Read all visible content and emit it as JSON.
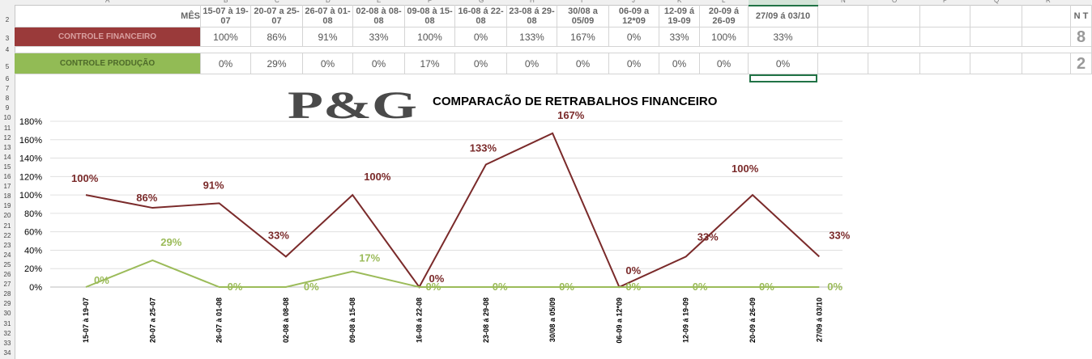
{
  "sheet": {
    "column_letters": [
      "A",
      "B",
      "C",
      "D",
      "E",
      "F",
      "G",
      "H",
      "I",
      "J",
      "K",
      "L",
      "M",
      "N",
      "O",
      "P",
      "Q",
      "R"
    ],
    "row_numbers": [
      "2",
      "3",
      "4",
      "5",
      "6",
      "7",
      "8",
      "9",
      "10",
      "11",
      "12",
      "13",
      "14",
      "15",
      "16",
      "17",
      "18",
      "19",
      "20",
      "21",
      "22",
      "23",
      "24",
      "25",
      "26",
      "27",
      "28",
      "29",
      "30",
      "31",
      "32",
      "33",
      "34"
    ],
    "header_label": "MÊS",
    "periods": [
      "15-07 à 19-07",
      "20-07 a 25-07",
      "26-07 à 01-08",
      "02-08 à 08-08",
      "09-08 à 15-08",
      "16-08 á 22-08",
      "23-08 á 29-08",
      "30/08 a 05/09",
      "06-09 a 12*09",
      "12-09 á 19-09",
      "20-09 á 26-09",
      "27/09 á 03/10"
    ],
    "row_fin_label": "CONTROLE FINANCEIRO",
    "row_fin_values": [
      "100%",
      "86%",
      "91%",
      "33%",
      "100%",
      "0%",
      "133%",
      "167%",
      "0%",
      "33%",
      "100%",
      "33%"
    ],
    "row_prod_label": "CONTROLE PRODUÇÃO",
    "row_prod_values": [
      "0%",
      "29%",
      "0%",
      "0%",
      "17%",
      "0%",
      "0%",
      "0%",
      "0%",
      "0%",
      "0%",
      "0%"
    ],
    "edge_header": "N T",
    "edge_fin": "8",
    "edge_prod": "2"
  },
  "logo_text": "P&G",
  "colors": {
    "financeiro": "#7a2a2a",
    "producao": "#9bbb59",
    "label_fin_bg": "#9a3a3a",
    "label_prod_bg": "#92bb55"
  },
  "chart_data": {
    "type": "line",
    "title": "COMPARACÃO DE RETRABALHOS  FINANCEIRO",
    "categories": [
      "15-07 à 19-07",
      "20-07 a 25-07",
      "26-07 à 01-08",
      "02-08 à 08-08",
      "09-08 à 15-08",
      "16-08 á 22-08",
      "23-08 á 29-08",
      "30/08 a 05/09",
      "06-09 a 12*09",
      "12-09 á 19-09",
      "20-09 á 26-09",
      "27/09 á 03/10"
    ],
    "series": [
      {
        "values": [
          100,
          86,
          91,
          33,
          100,
          0,
          133,
          167,
          0,
          33,
          100,
          33
        ],
        "labels": [
          "100%",
          "86%",
          "91%",
          "33%",
          "100%",
          "0%",
          "133%",
          "167%",
          "0%",
          "33%",
          "100%",
          "33%"
        ]
      },
      {
        "values": [
          0,
          29,
          0,
          0,
          17,
          0,
          0,
          0,
          0,
          0,
          0,
          0
        ],
        "labels": [
          "0%",
          "29%",
          "0%",
          "0%",
          "17%",
          "0%",
          "0%",
          "0%",
          "0%",
          "0%",
          "0%",
          "0%"
        ]
      }
    ],
    "y_ticks": [
      "0%",
      "20%",
      "40%",
      "60%",
      "80%",
      "100%",
      "120%",
      "140%",
      "160%",
      "180%"
    ],
    "ylim": [
      0,
      180
    ],
    "grid": true,
    "legend": "none"
  }
}
